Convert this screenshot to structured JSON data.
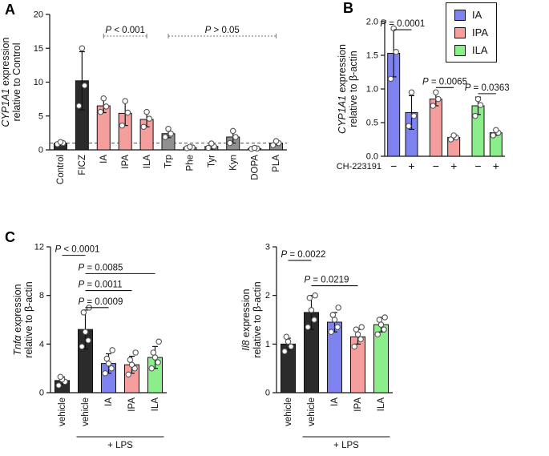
{
  "panels": {
    "a": {
      "label": "A"
    },
    "b": {
      "label": "B",
      "legend": {
        "items": [
          {
            "label": "IA",
            "color": "#7d82ee"
          },
          {
            "label": "IPA",
            "color": "#f59e9e"
          },
          {
            "label": "ILA",
            "color": "#8bee8b"
          }
        ]
      }
    },
    "c": {
      "label": "C"
    }
  },
  "colors": {
    "black_bar": "#2b2b2b",
    "gray_bar": "#909090",
    "pink_bar": "#f59e9e",
    "blue_bar": "#7d82ee",
    "green_bar": "#8bee8b",
    "axis": "#111111"
  },
  "chart_data": [
    {
      "id": "panelA",
      "type": "bar",
      "ylabel": [
        [
          {
            "t": "CYP1A1",
            "i": true
          },
          {
            "t": " expression"
          }
        ],
        [
          {
            "t": "relative to Control"
          }
        ]
      ],
      "ylim": [
        0,
        20
      ],
      "yticks": [
        {
          "v": 0,
          "l": "0"
        },
        {
          "v": 5,
          "l": "5"
        },
        {
          "v": 10,
          "l": "10"
        },
        {
          "v": 15,
          "l": "15"
        },
        {
          "v": 20,
          "l": "20"
        }
      ],
      "categories": [
        "Control",
        "FICZ",
        "IA",
        "IPA",
        "ILA",
        "Trp",
        "Phe",
        "Tyr",
        "Kyn",
        "DOPA",
        "PLA"
      ],
      "values": [
        1.0,
        10.2,
        6.5,
        5.4,
        4.5,
        2.4,
        0.35,
        0.5,
        1.9,
        0.2,
        1.0
      ],
      "errors": [
        0.2,
        4.3,
        1.0,
        1.8,
        1.1,
        0.6,
        0.12,
        0.35,
        0.9,
        0.08,
        0.3
      ],
      "bar_colors": [
        "#2b2b2b",
        "#2b2b2b",
        "#f59e9e",
        "#f59e9e",
        "#f59e9e",
        "#909090",
        "#909090",
        "#909090",
        "#909090",
        "#909090",
        "#909090"
      ],
      "points": [
        [
          0.85,
          1.0,
          1.15
        ],
        [
          6.5,
          9.5,
          15.0
        ],
        [
          5.6,
          6.4,
          7.6
        ],
        [
          3.6,
          5.5,
          7.2
        ],
        [
          3.4,
          4.6,
          5.6
        ],
        [
          1.9,
          2.4,
          3.1
        ],
        [
          0.25,
          0.35,
          0.45
        ],
        [
          0.3,
          0.5,
          0.95
        ],
        [
          1.0,
          1.9,
          2.8
        ],
        [
          0.15,
          0.2,
          0.3
        ],
        [
          0.7,
          1.0,
          1.3
        ]
      ],
      "dashed_line": 1,
      "xlabel_mode": "rotated",
      "annotations": [
        {
          "text": "P < 0.001",
          "x1": 2,
          "x2": 4,
          "line_y": 16.8,
          "style": "dotted",
          "align": "center"
        },
        {
          "text": "P > 0.05",
          "x1": 5,
          "x2": 10,
          "line_y": 16.8,
          "style": "dotted",
          "align": "center"
        }
      ]
    },
    {
      "id": "panelB",
      "type": "bar",
      "ylabel": [
        [
          {
            "t": "CYP1A1",
            "i": true
          },
          {
            "t": " expression"
          }
        ],
        [
          {
            "t": "relative to β-actin"
          }
        ]
      ],
      "ylim": [
        0,
        2
      ],
      "yticks": [
        {
          "v": 0,
          "l": "0.0"
        },
        {
          "v": 0.5,
          "l": "0.5"
        },
        {
          "v": 1,
          "l": "1.0"
        },
        {
          "v": 1.5,
          "l": "1.5"
        },
        {
          "v": 2,
          "l": "2.0"
        }
      ],
      "categories": [
        "−",
        "+",
        "−",
        "+",
        "−",
        "+"
      ],
      "axis_row_label": "CH-223191",
      "group_size": 2,
      "values": [
        1.53,
        0.65,
        0.85,
        0.28,
        0.75,
        0.35
      ],
      "errors": [
        0.35,
        0.25,
        0.1,
        0.03,
        0.13,
        0.04
      ],
      "bar_colors": [
        "#7d82ee",
        "#7d82ee",
        "#f59e9e",
        "#f59e9e",
        "#8bee8b",
        "#8bee8b"
      ],
      "points": [
        [
          1.15,
          1.55,
          1.9
        ],
        [
          0.45,
          0.6,
          0.95
        ],
        [
          0.75,
          0.85,
          0.95
        ],
        [
          0.25,
          0.28,
          0.31
        ],
        [
          0.6,
          0.76,
          0.85
        ],
        [
          0.31,
          0.35,
          0.39
        ]
      ],
      "xlabel_mode": "horizontal",
      "annotations": [
        {
          "text": "P = 0.0001",
          "x1": 0,
          "x2": 1,
          "line_y": 1.88,
          "style": "solid",
          "align": "center"
        },
        {
          "text": "P = 0.0065",
          "x1": 2,
          "x2": 3,
          "line_y": 1.02,
          "style": "solid",
          "align": "center"
        },
        {
          "text": "P = 0.0363",
          "x1": 4,
          "x2": 5,
          "line_y": 0.93,
          "style": "solid",
          "align": "center"
        }
      ]
    },
    {
      "id": "panelC1",
      "type": "bar",
      "ylabel": [
        [
          {
            "t": "Tnfα",
            "i": true
          },
          {
            "t": " expression"
          }
        ],
        [
          {
            "t": "relative to β-actin"
          }
        ]
      ],
      "ylim": [
        0,
        12
      ],
      "yticks": [
        {
          "v": 0,
          "l": "0"
        },
        {
          "v": 4,
          "l": "4"
        },
        {
          "v": 8,
          "l": "8"
        },
        {
          "v": 12,
          "l": "12"
        }
      ],
      "categories": [
        "vehicle",
        "vehicle",
        "IA",
        "IPA",
        "ILA"
      ],
      "values": [
        1.0,
        5.2,
        2.4,
        2.3,
        2.9
      ],
      "errors": [
        0.3,
        1.6,
        0.8,
        0.7,
        0.9
      ],
      "bar_colors": [
        "#2b2b2b",
        "#2b2b2b",
        "#7d82ee",
        "#f59e9e",
        "#8bee8b"
      ],
      "points": [
        [
          0.6,
          0.9,
          1.1,
          1.3
        ],
        [
          3.8,
          4.3,
          5.0,
          6.6,
          7.0
        ],
        [
          1.6,
          2.0,
          2.4,
          2.8,
          3.5
        ],
        [
          1.5,
          2.0,
          2.3,
          2.7,
          3.3
        ],
        [
          2.0,
          2.5,
          2.9,
          3.3,
          4.2
        ]
      ],
      "xlabel_mode": "rotated",
      "group_label": {
        "text": "+ LPS",
        "x1": 1,
        "x2": 4
      },
      "annotations": [
        {
          "text": "P < 0.0001",
          "x1": 0,
          "x2": 1,
          "line_y": 11.3,
          "style": "solid",
          "align": "left"
        },
        {
          "text": "P = 0.0085",
          "x1": 1,
          "x2": 4,
          "line_y": 9.8,
          "style": "solid",
          "align": "left"
        },
        {
          "text": "P = 0.0011",
          "x1": 1,
          "x2": 3,
          "line_y": 8.4,
          "style": "solid",
          "align": "left"
        },
        {
          "text": "P = 0.0009",
          "x1": 1,
          "x2": 2,
          "line_y": 7.0,
          "style": "solid",
          "align": "left"
        }
      ]
    },
    {
      "id": "panelC2",
      "type": "bar",
      "ylabel": [
        [
          {
            "t": "Il8",
            "i": true
          },
          {
            "t": " expression"
          }
        ],
        [
          {
            "t": "relative to β-actin"
          }
        ]
      ],
      "ylim": [
        0,
        3
      ],
      "yticks": [
        {
          "v": 0,
          "l": "0"
        },
        {
          "v": 1,
          "l": "1"
        },
        {
          "v": 2,
          "l": "2"
        },
        {
          "v": 3,
          "l": "3"
        }
      ],
      "categories": [
        "vehicle",
        "vehicle",
        "IA",
        "IPA",
        "ILA"
      ],
      "values": [
        1.0,
        1.65,
        1.45,
        1.15,
        1.4
      ],
      "errors": [
        0.12,
        0.35,
        0.2,
        0.15,
        0.15
      ],
      "bar_colors": [
        "#2b2b2b",
        "#2b2b2b",
        "#7d82ee",
        "#f59e9e",
        "#8bee8b"
      ],
      "points": [
        [
          0.85,
          0.95,
          1.05,
          1.15
        ],
        [
          1.35,
          1.5,
          1.7,
          1.95,
          2.0
        ],
        [
          1.25,
          1.35,
          1.5,
          1.6,
          1.75
        ],
        [
          0.95,
          1.1,
          1.2,
          1.3,
          1.35
        ],
        [
          1.2,
          1.3,
          1.4,
          1.5,
          1.55
        ]
      ],
      "xlabel_mode": "rotated",
      "group_label": {
        "text": "+ LPS",
        "x1": 1,
        "x2": 4
      },
      "annotations": [
        {
          "text": "P = 0.0022",
          "x1": 0,
          "x2": 1,
          "line_y": 2.72,
          "style": "solid",
          "align": "left"
        },
        {
          "text": "P = 0.0219",
          "x1": 1,
          "x2": 3,
          "line_y": 2.2,
          "style": "solid",
          "align": "left"
        }
      ]
    }
  ]
}
